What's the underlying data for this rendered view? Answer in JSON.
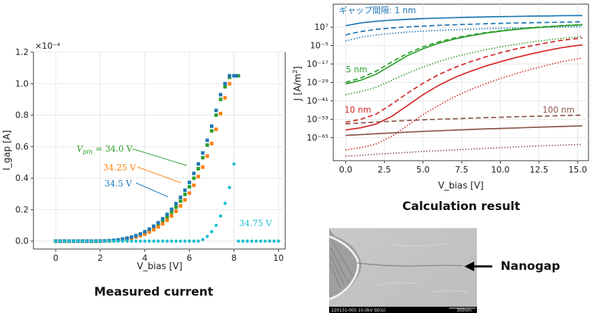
{
  "captions": {
    "left": "Measured current",
    "right": "Calculation result",
    "nanogap": "Nanogap"
  },
  "sem": {
    "footer": "220131-005 10.0kV SE(U)",
    "scalebar": "300nm"
  },
  "chart_data": [
    {
      "type": "scatter",
      "xlabel": "V_bias [V]",
      "ylabel": "I_gap [A]",
      "ylabel_multiplier": "×10⁻⁴",
      "xlim": [
        -1,
        10.3
      ],
      "ylim": [
        -0.05,
        1.2
      ],
      "x_ticks": [
        "0",
        "2",
        "4",
        "6",
        "8",
        "10"
      ],
      "y_ticks": [
        "0.0",
        "0.2",
        "0.4",
        "0.6",
        "0.8",
        "1.0",
        "1.2"
      ],
      "grid": true,
      "annotations": [
        {
          "label": "V_pin = 34.0 V",
          "color": "#2ca02c"
        },
        {
          "label": "34.25 V",
          "color": "#ff7f0e"
        },
        {
          "label": "34.5 V",
          "color": "#1f77b4"
        },
        {
          "label": "34.75 V",
          "color": "#17becf"
        }
      ],
      "series": [
        {
          "name": "34.0 V",
          "color": "#2ca02c",
          "marker": "square",
          "x": [
            0,
            0.2,
            0.4,
            0.6,
            0.8,
            1.0,
            1.2,
            1.4,
            1.6,
            1.8,
            2.0,
            2.2,
            2.4,
            2.6,
            2.8,
            3.0,
            3.2,
            3.4,
            3.6,
            3.8,
            4.0,
            4.2,
            4.4,
            4.6,
            4.8,
            5.0,
            5.2,
            5.4,
            5.6,
            5.8,
            6.0,
            6.2,
            6.4,
            6.6,
            6.8,
            7.0,
            7.2,
            7.4,
            7.6,
            7.8,
            8.0,
            8.2
          ],
          "y": [
            0,
            0,
            0,
            0,
            0,
            0,
            0,
            0,
            0,
            0,
            0,
            0.001,
            0.002,
            0.004,
            0.007,
            0.011,
            0.016,
            0.022,
            0.03,
            0.04,
            0.052,
            0.067,
            0.084,
            0.104,
            0.127,
            0.153,
            0.183,
            0.216,
            0.254,
            0.297,
            0.345,
            0.4,
            0.46,
            0.53,
            0.61,
            0.7,
            0.8,
            0.9,
            0.98,
            1.04,
            1.05,
            1.05
          ]
        },
        {
          "name": "34.25 V",
          "color": "#ff7f0e",
          "marker": "square",
          "x": [
            0,
            0.2,
            0.4,
            0.6,
            0.8,
            1.0,
            1.2,
            1.4,
            1.6,
            1.8,
            2.0,
            2.2,
            2.4,
            2.6,
            2.8,
            3.0,
            3.2,
            3.4,
            3.6,
            3.8,
            4.0,
            4.2,
            4.4,
            4.6,
            4.8,
            5.0,
            5.2,
            5.4,
            5.6,
            5.8,
            6.0,
            6.2,
            6.4,
            6.6,
            6.8,
            7.0,
            7.2,
            7.4,
            7.6,
            7.8,
            8.0
          ],
          "y": [
            0,
            0,
            0,
            0,
            0,
            0,
            0,
            0,
            0,
            0,
            0,
            0.001,
            0.002,
            0.003,
            0.006,
            0.009,
            0.013,
            0.019,
            0.026,
            0.035,
            0.045,
            0.058,
            0.073,
            0.09,
            0.11,
            0.133,
            0.16,
            0.19,
            0.224,
            0.262,
            0.305,
            0.355,
            0.41,
            0.47,
            0.54,
            0.62,
            0.71,
            0.81,
            0.91,
            1.0,
            1.05
          ]
        },
        {
          "name": "34.5 V",
          "color": "#1f77b4",
          "marker": "square",
          "x": [
            0,
            0.2,
            0.4,
            0.6,
            0.8,
            1.0,
            1.2,
            1.4,
            1.6,
            1.8,
            2.0,
            2.2,
            2.4,
            2.6,
            2.8,
            3.0,
            3.2,
            3.4,
            3.6,
            3.8,
            4.0,
            4.2,
            4.4,
            4.6,
            4.8,
            5.0,
            5.2,
            5.4,
            5.6,
            5.8,
            6.0,
            6.2,
            6.4,
            6.6,
            6.8,
            7.0,
            7.2,
            7.4,
            7.6,
            7.8,
            8.0,
            8.1
          ],
          "y": [
            0,
            0,
            0,
            0,
            0,
            0,
            0,
            0,
            0,
            0,
            0.001,
            0.002,
            0.003,
            0.005,
            0.008,
            0.013,
            0.019,
            0.026,
            0.035,
            0.046,
            0.06,
            0.076,
            0.095,
            0.117,
            0.142,
            0.17,
            0.202,
            0.238,
            0.278,
            0.323,
            0.373,
            0.43,
            0.49,
            0.56,
            0.64,
            0.73,
            0.83,
            0.93,
            1.0,
            1.05,
            1.05,
            1.05
          ]
        },
        {
          "name": "34.75 V",
          "color": "#17becf",
          "marker": "circle",
          "x": [
            0,
            0.2,
            0.4,
            0.6,
            0.8,
            1.0,
            1.2,
            1.4,
            1.6,
            1.8,
            2.0,
            2.2,
            2.4,
            2.6,
            2.8,
            3.0,
            3.2,
            3.4,
            3.6,
            3.8,
            4.0,
            4.2,
            4.4,
            4.6,
            4.8,
            5.0,
            5.2,
            5.4,
            5.6,
            5.8,
            6.0,
            6.2,
            6.4,
            6.6,
            6.8,
            7.0,
            7.2,
            7.4,
            7.6,
            7.8,
            8.0,
            8.2,
            8.4,
            8.6,
            8.8,
            9.0,
            9.2,
            9.4,
            9.6,
            9.8,
            10.0
          ],
          "y": [
            0,
            0,
            0,
            0,
            0,
            0,
            0,
            0,
            0,
            0,
            0,
            0,
            0,
            0,
            0,
            0,
            0,
            0,
            0,
            0,
            0,
            0,
            0,
            0,
            0,
            0,
            0,
            0,
            0,
            0,
            0,
            0,
            0,
            0.01,
            0.03,
            0.06,
            0.1,
            0.16,
            0.24,
            0.34,
            0.49,
            0,
            0,
            0,
            0,
            0,
            0,
            0,
            0,
            0,
            0
          ]
        }
      ]
    },
    {
      "type": "line",
      "xlabel": "V_bias [V]",
      "ylabel": "J [A/m²]",
      "xlim": [
        -0.8,
        15.7
      ],
      "ylim": [
        -80,
        22
      ],
      "y_scale": "log",
      "x_ticks": [
        "0.0",
        "2.5",
        "5.0",
        "7.5",
        "10.0",
        "12.5",
        "15.0"
      ],
      "y_ticks": [
        "10⁷",
        "10⁻⁵",
        "10⁻¹⁷",
        "10⁻²⁹",
        "10⁻⁴¹",
        "10⁻⁵³",
        "10⁻⁶⁵"
      ],
      "grid": true,
      "annotations": [
        {
          "label": "ギャップ間隔: 1 nm",
          "color": "#1f77b4"
        },
        {
          "label": "5 nm",
          "color": "#2ca02c"
        },
        {
          "label": "10 nm",
          "color": "#d62728"
        },
        {
          "label": "100 nm",
          "color": "#8c564b"
        }
      ],
      "series": [
        {
          "name": "1 nm",
          "style": "solid",
          "color": "#1f77b4",
          "x": [
            0,
            1,
            2,
            3,
            4,
            5,
            6,
            7,
            8,
            9,
            10,
            11,
            12,
            13,
            14,
            15.3
          ],
          "y": [
            8,
            9.8,
            10.9,
            11.6,
            12.1,
            12.6,
            12.9,
            13.2,
            13.5,
            13.7,
            13.9,
            14.0,
            14.2,
            14.3,
            14.5,
            14.6
          ]
        },
        {
          "name": "1 nm",
          "style": "dashed",
          "color": "#1f77b4",
          "x": [
            0,
            1,
            2,
            3,
            4,
            5,
            6,
            7,
            8,
            9,
            10,
            11,
            12,
            13,
            14,
            15.3
          ],
          "y": [
            2,
            4.2,
            5.6,
            6.5,
            7.2,
            7.7,
            8.2,
            8.6,
            8.9,
            9.2,
            9.5,
            9.7,
            9.9,
            10.1,
            10.3,
            10.5
          ]
        },
        {
          "name": "1 nm",
          "style": "dotted",
          "color": "#1f77b4",
          "x": [
            0,
            1,
            2,
            3,
            4,
            5,
            6,
            7,
            8,
            9,
            10,
            11,
            12,
            13,
            14,
            15.3
          ],
          "y": [
            -2,
            0.5,
            2,
            3,
            3.8,
            4.4,
            4.9,
            5.3,
            5.7,
            6.0,
            6.3,
            6.5,
            6.7,
            6.9,
            7.1,
            7.3
          ]
        },
        {
          "name": "5 nm",
          "style": "solid",
          "color": "#2ca02c",
          "x": [
            0,
            1,
            2,
            3,
            4,
            5,
            6,
            7,
            8,
            9,
            10,
            11,
            12,
            13,
            14,
            15.3
          ],
          "y": [
            -30,
            -27.5,
            -23.5,
            -17.5,
            -11.5,
            -7,
            -3.5,
            -0.8,
            1.3,
            3,
            4.4,
            5.5,
            6.4,
            7.2,
            7.9,
            8.5
          ]
        },
        {
          "name": "5 nm",
          "style": "dashed",
          "color": "#2ca02c",
          "x": [
            0,
            1,
            2,
            3,
            4,
            5,
            6,
            7,
            8,
            9,
            10,
            11,
            12,
            13,
            14,
            15.3
          ],
          "y": [
            -29,
            -26,
            -21.5,
            -15.5,
            -10,
            -5.8,
            -2.6,
            -0.1,
            1.8,
            3.4,
            4.7,
            5.8,
            6.7,
            7.4,
            8.1,
            8.7
          ]
        },
        {
          "name": "5 nm",
          "style": "dotted",
          "color": "#2ca02c",
          "x": [
            0,
            1,
            2,
            3,
            4,
            5,
            6,
            7,
            8,
            9,
            10,
            11,
            12,
            13,
            14,
            15.3
          ],
          "y": [
            -37,
            -35,
            -32,
            -27.5,
            -23,
            -19,
            -15.5,
            -12.5,
            -10,
            -7.8,
            -5.9,
            -4.2,
            -2.7,
            -1.4,
            -0.2,
            0.9
          ]
        },
        {
          "name": "10 nm",
          "style": "solid",
          "color": "#d62728",
          "x": [
            0,
            1,
            2,
            3,
            4,
            5,
            6,
            7,
            8,
            9,
            10,
            11,
            12,
            13,
            14,
            15.3
          ],
          "y": [
            -60,
            -58.5,
            -56,
            -51,
            -44,
            -37,
            -31,
            -26,
            -22,
            -18.5,
            -15.5,
            -12.8,
            -10.4,
            -8.2,
            -6.3,
            -4.5
          ]
        },
        {
          "name": "10 nm",
          "style": "dashed",
          "color": "#d62728",
          "x": [
            0,
            1,
            2,
            3,
            4,
            5,
            6,
            7,
            8,
            9,
            10,
            11,
            12,
            13,
            14,
            15.3
          ],
          "y": [
            -55,
            -53,
            -49.5,
            -43,
            -36,
            -29.5,
            -24,
            -19.5,
            -15.7,
            -12.5,
            -9.7,
            -7.2,
            -5.1,
            -3.2,
            -1.5,
            0
          ]
        },
        {
          "name": "10 nm",
          "style": "dotted",
          "color": "#d62728",
          "x": [
            0,
            1,
            2,
            3,
            4,
            5,
            6,
            7,
            8,
            9,
            10,
            11,
            12,
            13,
            14,
            15.3
          ],
          "y": [
            -73,
            -71.5,
            -69,
            -64,
            -57,
            -50,
            -44,
            -38.5,
            -34,
            -30,
            -26.5,
            -23.3,
            -20.4,
            -17.8,
            -15.4,
            -13
          ]
        },
        {
          "name": "100 nm",
          "style": "solid",
          "color": "#8c564b",
          "x": [
            0,
            1,
            2,
            3,
            4,
            5,
            6,
            7,
            8,
            9,
            10,
            11,
            12,
            13,
            14,
            15.3
          ],
          "y": [
            -63.5,
            -63,
            -62.4,
            -61.9,
            -61.4,
            -60.9,
            -60.5,
            -60.1,
            -59.7,
            -59.3,
            -59,
            -58.7,
            -58.3,
            -58,
            -57.7,
            -57.3
          ]
        },
        {
          "name": "100 nm",
          "style": "dashed",
          "color": "#8c564b",
          "x": [
            0,
            1,
            2,
            3,
            4,
            5,
            6,
            7,
            8,
            9,
            10,
            11,
            12,
            13,
            14,
            15.3
          ],
          "y": [
            -56,
            -55.4,
            -54.8,
            -54.3,
            -53.8,
            -53.4,
            -53,
            -52.7,
            -52.3,
            -52,
            -51.7,
            -51.4,
            -51.1,
            -50.9,
            -50.6,
            -50.3
          ]
        },
        {
          "name": "100 nm",
          "style": "dotted",
          "color": "#8c564b",
          "x": [
            0,
            1,
            2,
            3,
            4,
            5,
            6,
            7,
            8,
            9,
            10,
            11,
            12,
            13,
            14,
            15.3
          ],
          "y": [
            -77,
            -76.5,
            -75.8,
            -75.2,
            -74.6,
            -74,
            -73.5,
            -73,
            -72.5,
            -72,
            -71.5,
            -71,
            -70.6,
            -70.2,
            -69.8,
            -69.4
          ]
        }
      ]
    }
  ]
}
